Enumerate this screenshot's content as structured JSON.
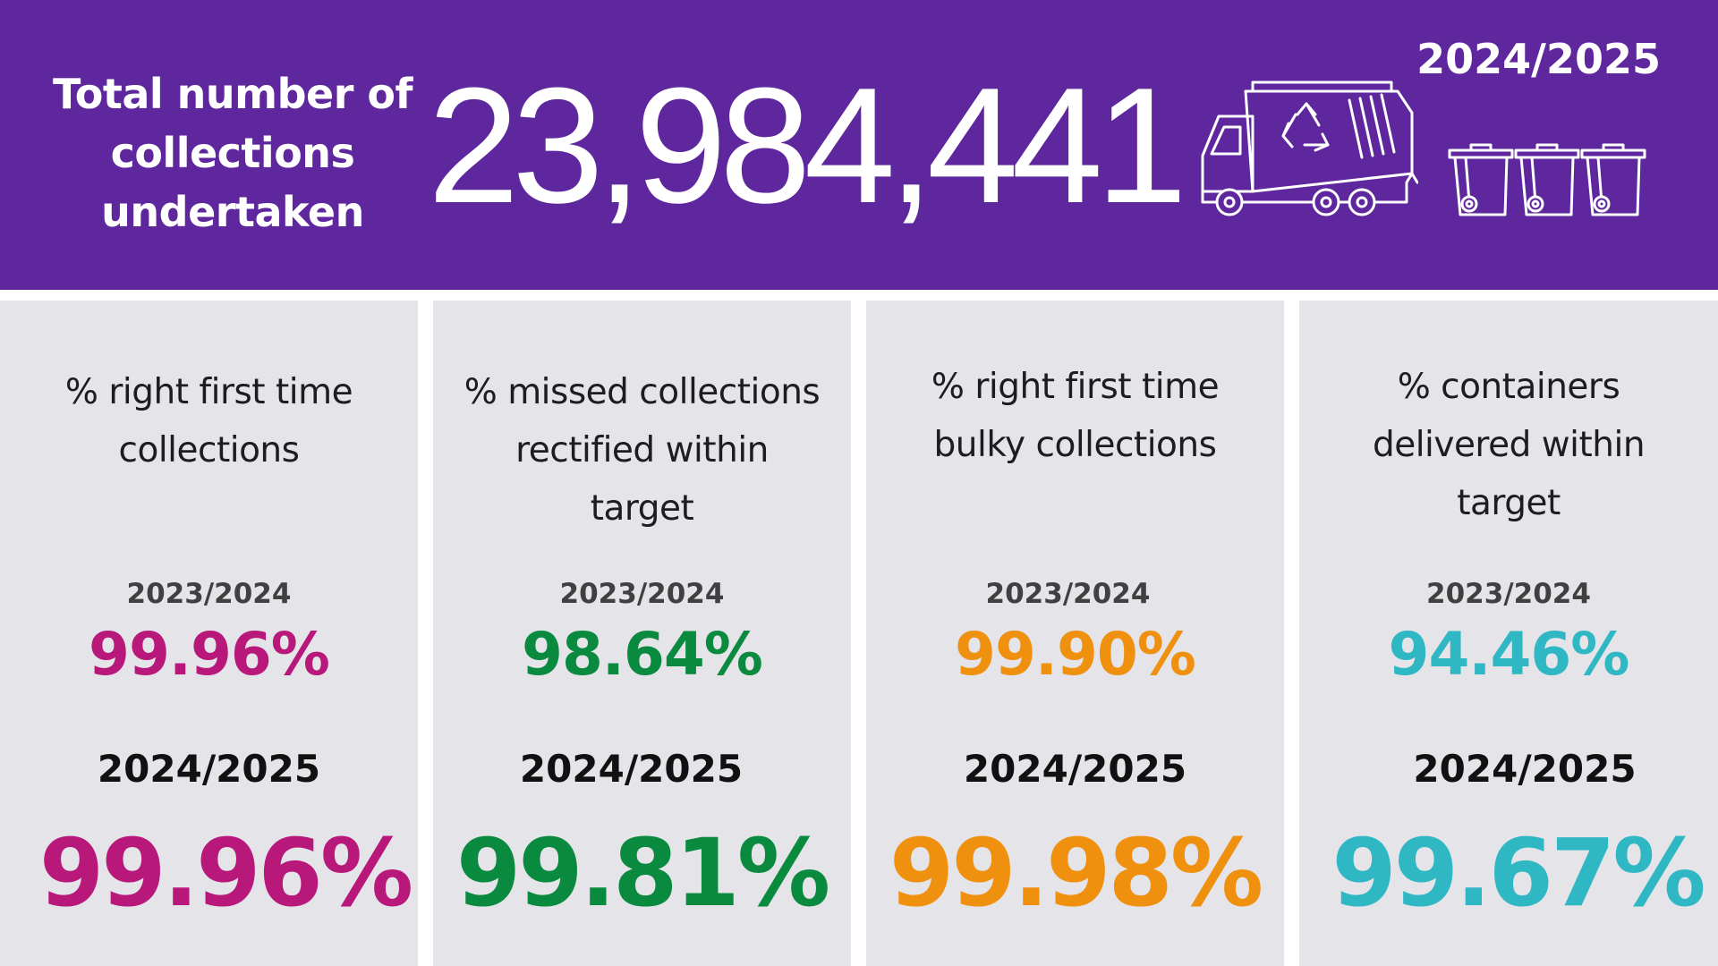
{
  "banner": {
    "label": "Total number of collections undertaken",
    "label_lines": [
      "Total number of",
      "collections",
      "undertaken"
    ],
    "total": "23,984,441",
    "year": "2024/2025",
    "icons": [
      "recycling-truck-icon",
      "wheelie-bin-icon",
      "wheelie-bin-icon",
      "wheelie-bin-icon"
    ],
    "background_color": "#5f279e"
  },
  "cards": [
    {
      "title_lines": [
        "% right first time",
        "collections"
      ],
      "prev_year": "2023/2024",
      "prev_value": "99.96%",
      "cur_year": "2024/2025",
      "cur_value": "99.96%",
      "color": "#b8187a"
    },
    {
      "title_lines": [
        "% missed collections",
        "rectified within",
        "target"
      ],
      "prev_year": "2023/2024",
      "prev_value": "98.64%",
      "cur_year": "2024/2025",
      "cur_value": "99.81%",
      "color": "#0a8a3f"
    },
    {
      "title_lines": [
        "% right first time",
        "bulky collections"
      ],
      "prev_year": "2023/2024",
      "prev_value": "99.90%",
      "cur_year": "2024/2025",
      "cur_value": "99.98%",
      "color": "#f0900f"
    },
    {
      "title_lines": [
        "% containers",
        "delivered within",
        "target"
      ],
      "prev_year": "2023/2024",
      "prev_value": "94.46%",
      "cur_year": "2024/2025",
      "cur_value": "99.67%",
      "color": "#2fb8c4"
    }
  ]
}
